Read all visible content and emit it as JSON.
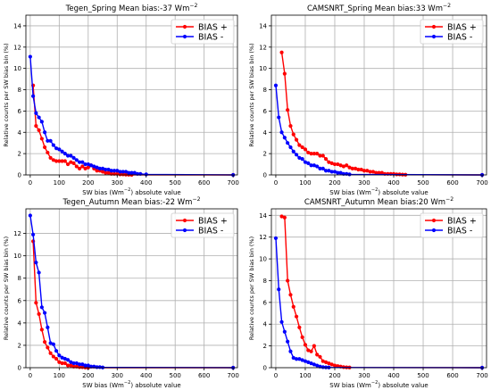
{
  "chart_data": [
    {
      "type": "line",
      "title": "Tegen_Spring Mean bias:-37 Wm",
      "title_sup": "−2",
      "xlabel": "SW bias (Wm",
      "xlabel_sup": "−2",
      "xlabel_tail": ") absolute value",
      "ylabel": "Relative counts per SW bias bin (%)",
      "xlim": [
        -15,
        715
      ],
      "ylim": [
        0,
        15
      ],
      "xticks": [
        0,
        100,
        200,
        300,
        400,
        500,
        600,
        700
      ],
      "yticks": [
        0,
        2,
        4,
        6,
        8,
        10,
        12,
        14
      ],
      "grid": true,
      "legend": "top-right",
      "series": [
        {
          "name": "BIAS +",
          "color": "#ff0000",
          "x": [
            10,
            20,
            30,
            40,
            50,
            60,
            70,
            80,
            90,
            100,
            110,
            120,
            130,
            140,
            150,
            160,
            170,
            180,
            190,
            200,
            210,
            220,
            230,
            240,
            250,
            260,
            270,
            280,
            290,
            300,
            310,
            320,
            330,
            340,
            350,
            700
          ],
          "y": [
            8.4,
            4.6,
            4.2,
            3.4,
            2.6,
            2.1,
            1.6,
            1.4,
            1.3,
            1.3,
            1.3,
            1.3,
            1.0,
            1.2,
            1.1,
            0.8,
            0.6,
            0.8,
            0.6,
            0.7,
            0.9,
            0.6,
            0.4,
            0.4,
            0.3,
            0.2,
            0.2,
            0.1,
            0.1,
            0.1,
            0.05,
            0.05,
            0.03,
            0.02,
            0.01,
            0.0
          ]
        },
        {
          "name": "BIAS -",
          "color": "#0000ff",
          "x": [
            0,
            10,
            20,
            30,
            40,
            50,
            60,
            70,
            80,
            90,
            100,
            110,
            120,
            130,
            140,
            150,
            160,
            170,
            180,
            190,
            200,
            210,
            220,
            230,
            240,
            250,
            260,
            270,
            280,
            290,
            300,
            310,
            320,
            330,
            340,
            350,
            360,
            370,
            380,
            400,
            700
          ],
          "y": [
            11.1,
            7.4,
            5.8,
            5.4,
            5.0,
            4.0,
            3.2,
            3.2,
            2.8,
            2.5,
            2.4,
            2.2,
            2.0,
            1.8,
            1.8,
            1.6,
            1.4,
            1.2,
            1.2,
            1.0,
            1.0,
            0.9,
            0.8,
            0.7,
            0.6,
            0.6,
            0.5,
            0.5,
            0.4,
            0.4,
            0.4,
            0.3,
            0.3,
            0.3,
            0.2,
            0.2,
            0.2,
            0.1,
            0.1,
            0.05,
            0.0
          ]
        }
      ]
    },
    {
      "type": "line",
      "title": "CAMSNRT_Spring Mean bias:33 Wm",
      "title_sup": "−2",
      "xlabel": "SW bias (Wm",
      "xlabel_sup": "−2",
      "xlabel_tail": ") absolute value",
      "ylabel": "Relative counts per SW bias bin (%)",
      "xlim": [
        -15,
        715
      ],
      "ylim": [
        0,
        15
      ],
      "xticks": [
        0,
        100,
        200,
        300,
        400,
        500,
        600,
        700
      ],
      "yticks": [
        0,
        2,
        4,
        6,
        8,
        10,
        12,
        14
      ],
      "grid": true,
      "legend": "top-right",
      "series": [
        {
          "name": "BIAS +",
          "color": "#ff0000",
          "x": [
            20,
            30,
            40,
            50,
            60,
            70,
            80,
            90,
            100,
            110,
            120,
            130,
            140,
            150,
            160,
            170,
            180,
            190,
            200,
            210,
            220,
            230,
            240,
            250,
            260,
            270,
            280,
            290,
            300,
            310,
            320,
            330,
            340,
            350,
            360,
            370,
            380,
            390,
            400,
            410,
            420,
            430,
            440,
            700
          ],
          "y": [
            11.5,
            9.5,
            6.1,
            4.6,
            3.8,
            3.3,
            2.8,
            2.6,
            2.4,
            2.1,
            2.0,
            2.0,
            2.0,
            1.8,
            1.8,
            1.5,
            1.2,
            1.1,
            1.0,
            1.0,
            0.9,
            0.8,
            0.9,
            0.7,
            0.6,
            0.6,
            0.5,
            0.5,
            0.4,
            0.4,
            0.3,
            0.3,
            0.2,
            0.2,
            0.2,
            0.1,
            0.1,
            0.1,
            0.1,
            0.05,
            0.05,
            0.03,
            0.02,
            0.0
          ]
        },
        {
          "name": "BIAS -",
          "color": "#0000ff",
          "x": [
            0,
            10,
            20,
            30,
            40,
            50,
            60,
            70,
            80,
            90,
            100,
            110,
            120,
            130,
            140,
            150,
            160,
            170,
            180,
            190,
            200,
            210,
            220,
            230,
            240,
            250,
            700
          ],
          "y": [
            8.4,
            5.4,
            4.0,
            3.5,
            3.0,
            2.6,
            2.2,
            1.9,
            1.6,
            1.5,
            1.2,
            1.1,
            0.9,
            0.9,
            0.8,
            0.6,
            0.6,
            0.4,
            0.4,
            0.3,
            0.3,
            0.2,
            0.2,
            0.1,
            0.1,
            0.05,
            0.0
          ]
        }
      ]
    },
    {
      "type": "line",
      "title": "Tegen_Autumn Mean bias:-22 Wm",
      "title_sup": "−2",
      "xlabel": "SW bias (Wm",
      "xlabel_sup": "−2",
      "xlabel_tail": ") absolute value",
      "ylabel": "Relative counts per SW bias bin (%)",
      "xlim": [
        -15,
        715
      ],
      "ylim": [
        0,
        14.2
      ],
      "xticks": [
        0,
        100,
        200,
        300,
        400,
        500,
        600,
        700
      ],
      "yticks": [
        0,
        2,
        4,
        6,
        8,
        10,
        12
      ],
      "grid": true,
      "legend": "top-right",
      "series": [
        {
          "name": "BIAS +",
          "color": "#ff0000",
          "x": [
            10,
            20,
            30,
            40,
            50,
            60,
            70,
            80,
            90,
            100,
            110,
            120,
            130,
            140,
            150,
            160,
            170,
            180,
            190,
            200,
            700
          ],
          "y": [
            11.3,
            5.8,
            4.8,
            3.4,
            2.3,
            1.8,
            1.3,
            1.0,
            0.8,
            0.5,
            0.4,
            0.4,
            0.2,
            0.2,
            0.1,
            0.1,
            0.05,
            0.05,
            0.02,
            0.0,
            0.0
          ]
        },
        {
          "name": "BIAS -",
          "color": "#0000ff",
          "x": [
            0,
            10,
            20,
            30,
            40,
            50,
            60,
            70,
            80,
            90,
            100,
            110,
            120,
            130,
            140,
            150,
            160,
            170,
            180,
            190,
            200,
            210,
            220,
            230,
            240,
            250,
            700
          ],
          "y": [
            13.6,
            11.9,
            9.4,
            8.5,
            5.4,
            4.9,
            3.6,
            2.2,
            2.1,
            1.5,
            1.1,
            0.9,
            0.8,
            0.7,
            0.5,
            0.4,
            0.4,
            0.3,
            0.3,
            0.2,
            0.2,
            0.1,
            0.1,
            0.05,
            0.05,
            0.02,
            0.0
          ]
        }
      ]
    },
    {
      "type": "line",
      "title": "CAMSNRT_Autumn Mean bias:20 Wm",
      "title_sup": "−2",
      "xlabel": "SW bias (Wm",
      "xlabel_sup": "−2",
      "xlabel_tail": ") absolute value",
      "ylabel": "Relative counts per SW bias bin (%)",
      "xlim": [
        -15,
        715
      ],
      "ylim": [
        0,
        14.6
      ],
      "xticks": [
        0,
        100,
        200,
        300,
        400,
        500,
        600,
        700
      ],
      "yticks": [
        0,
        2,
        4,
        6,
        8,
        10,
        12,
        14
      ],
      "grid": true,
      "legend": "top-right",
      "series": [
        {
          "name": "BIAS +",
          "color": "#ff0000",
          "x": [
            20,
            30,
            40,
            50,
            60,
            70,
            80,
            90,
            100,
            110,
            120,
            130,
            140,
            150,
            160,
            170,
            180,
            190,
            200,
            210,
            220,
            230,
            240,
            250,
            700
          ],
          "y": [
            13.9,
            13.8,
            8.0,
            6.7,
            5.6,
            4.7,
            3.7,
            2.8,
            2.1,
            1.6,
            1.5,
            2.0,
            1.2,
            1.0,
            0.6,
            0.5,
            0.4,
            0.3,
            0.2,
            0.15,
            0.1,
            0.05,
            0.03,
            0.02,
            0.0
          ]
        },
        {
          "name": "BIAS -",
          "color": "#0000ff",
          "x": [
            0,
            10,
            20,
            30,
            40,
            50,
            60,
            70,
            80,
            90,
            100,
            110,
            120,
            130,
            140,
            150,
            160,
            170,
            180,
            700
          ],
          "y": [
            11.9,
            7.2,
            4.2,
            3.3,
            2.4,
            1.5,
            0.9,
            0.8,
            0.8,
            0.7,
            0.6,
            0.5,
            0.4,
            0.3,
            0.2,
            0.1,
            0.05,
            0.03,
            0.02,
            0.0
          ]
        }
      ]
    }
  ]
}
